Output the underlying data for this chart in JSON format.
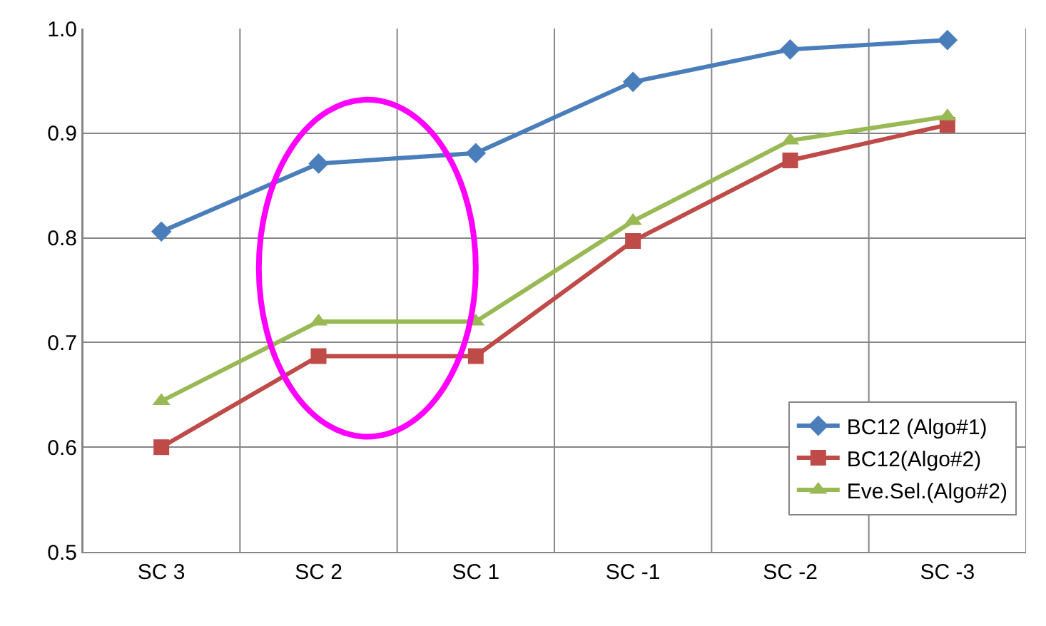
{
  "chart_data": {
    "type": "line",
    "categories": [
      "SC 3",
      "SC 2",
      "SC 1",
      "SC -1",
      "SC -2",
      "SC -3"
    ],
    "series": [
      {
        "name": "BC12 (Algo#1)",
        "color": "#4a7ebb",
        "marker": "diamond",
        "values": [
          0.806,
          0.871,
          0.881,
          0.949,
          0.98,
          0.989
        ]
      },
      {
        "name": "BC12(Algo#2)",
        "color": "#be4b48",
        "marker": "square",
        "values": [
          0.6,
          0.687,
          0.687,
          0.797,
          0.874,
          0.908
        ]
      },
      {
        "name": "Eve.Sel.(Algo#2)",
        "color": "#98b954",
        "marker": "triangle",
        "values": [
          0.644,
          0.72,
          0.72,
          0.816,
          0.893,
          0.916
        ]
      }
    ],
    "ylim": [
      0.5,
      1.0
    ],
    "yticks": [
      {
        "value": 0.5,
        "label": "0.5"
      },
      {
        "value": 0.6,
        "label": "0.6"
      },
      {
        "value": 0.7,
        "label": "0.7"
      },
      {
        "value": 0.8,
        "label": "0.8"
      },
      {
        "value": 0.9,
        "label": "0.9"
      },
      {
        "value": 1.0,
        "label": "1.0"
      }
    ],
    "grid": true,
    "legend": "bottom right",
    "line_style": "solid"
  }
}
